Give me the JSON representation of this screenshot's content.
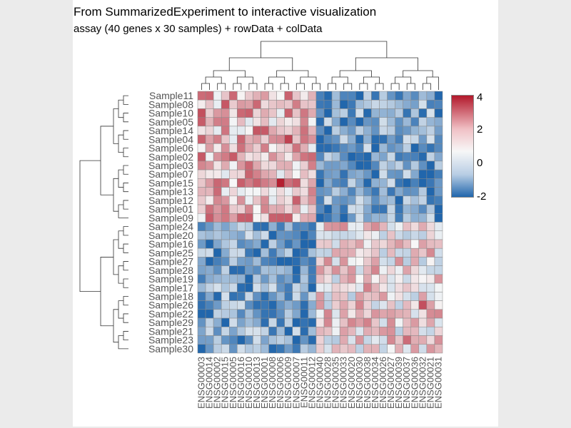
{
  "title": "From SummarizedExperiment to interactive visualization",
  "subtitle": "assay (40 genes x 30 samples) + rowData + colData",
  "colors": {
    "high": "#b2182b",
    "mid": "#f7f7f7",
    "low": "#2166ac",
    "background": "#ebebeb",
    "panel": "#ffffff"
  },
  "legend": {
    "placement": "right",
    "ticks": [
      "4",
      "2",
      "0",
      "-2"
    ]
  },
  "chart_data": {
    "type": "heatmap",
    "rows": [
      "Sample11",
      "Sample08",
      "Sample10",
      "Sample05",
      "Sample14",
      "Sample04",
      "Sample06",
      "Sample02",
      "Sample03",
      "Sample07",
      "Sample15",
      "Sample13",
      "Sample12",
      "Sample01",
      "Sample09",
      "Sample24",
      "Sample20",
      "Sample16",
      "Sample25",
      "Sample27",
      "Sample28",
      "Sample19",
      "Sample17",
      "Sample18",
      "Sample26",
      "Sample22",
      "Sample29",
      "Sample21",
      "Sample23",
      "Sample30"
    ],
    "columns": [
      "ENSG00003",
      "ENSG00014",
      "ENSG00002",
      "ENSG00015",
      "ENSG00005",
      "ENSG00016",
      "ENSG00010",
      "ENSG00013",
      "ENSG00001",
      "ENSG00008",
      "ENSG00006",
      "ENSG00009",
      "ENSG00007",
      "ENSG00011",
      "ENSG00012",
      "ENSG00040",
      "ENSG00028",
      "ENSG00035",
      "ENSG00033",
      "ENSG00020",
      "ENSG00030",
      "ENSG00038",
      "ENSG00034",
      "ENSG00026",
      "ENSG00027",
      "ENSG00039",
      "ENSG00037",
      "ENSG00036",
      "ENSG00032",
      "ENSG00021",
      "ENSG00031"
    ],
    "color_range": [
      -2,
      4
    ],
    "row_groups": [
      {
        "name": "",
        "rows": 15,
        "left_block_mean": 1.8,
        "right_block_mean": -0.9
      },
      {
        "name": "",
        "rows": 15,
        "left_block_mean": -0.9,
        "right_block_mean": 1.2
      }
    ],
    "left_block_columns": 15,
    "notable_cells": [
      {
        "row": "Sample10",
        "column": "ENSG00003",
        "value": 3.2
      },
      {
        "row": "Sample15",
        "column": "ENSG00006",
        "value": 3.9
      },
      {
        "row": "Sample04",
        "column": "ENSG00009",
        "value": 3.4
      },
      {
        "row": "Sample14",
        "column": "ENSG00013",
        "value": 3.1
      },
      {
        "row": "Sample06",
        "column": "ENSG00028",
        "value": -1.9
      },
      {
        "row": "Sample26",
        "column": "ENSG00013",
        "value": -1.8
      },
      {
        "row": "Sample26",
        "column": "ENSG00032",
        "value": 3.2
      },
      {
        "row": "Sample23",
        "column": "ENSG00037",
        "value": 2.8
      }
    ]
  }
}
